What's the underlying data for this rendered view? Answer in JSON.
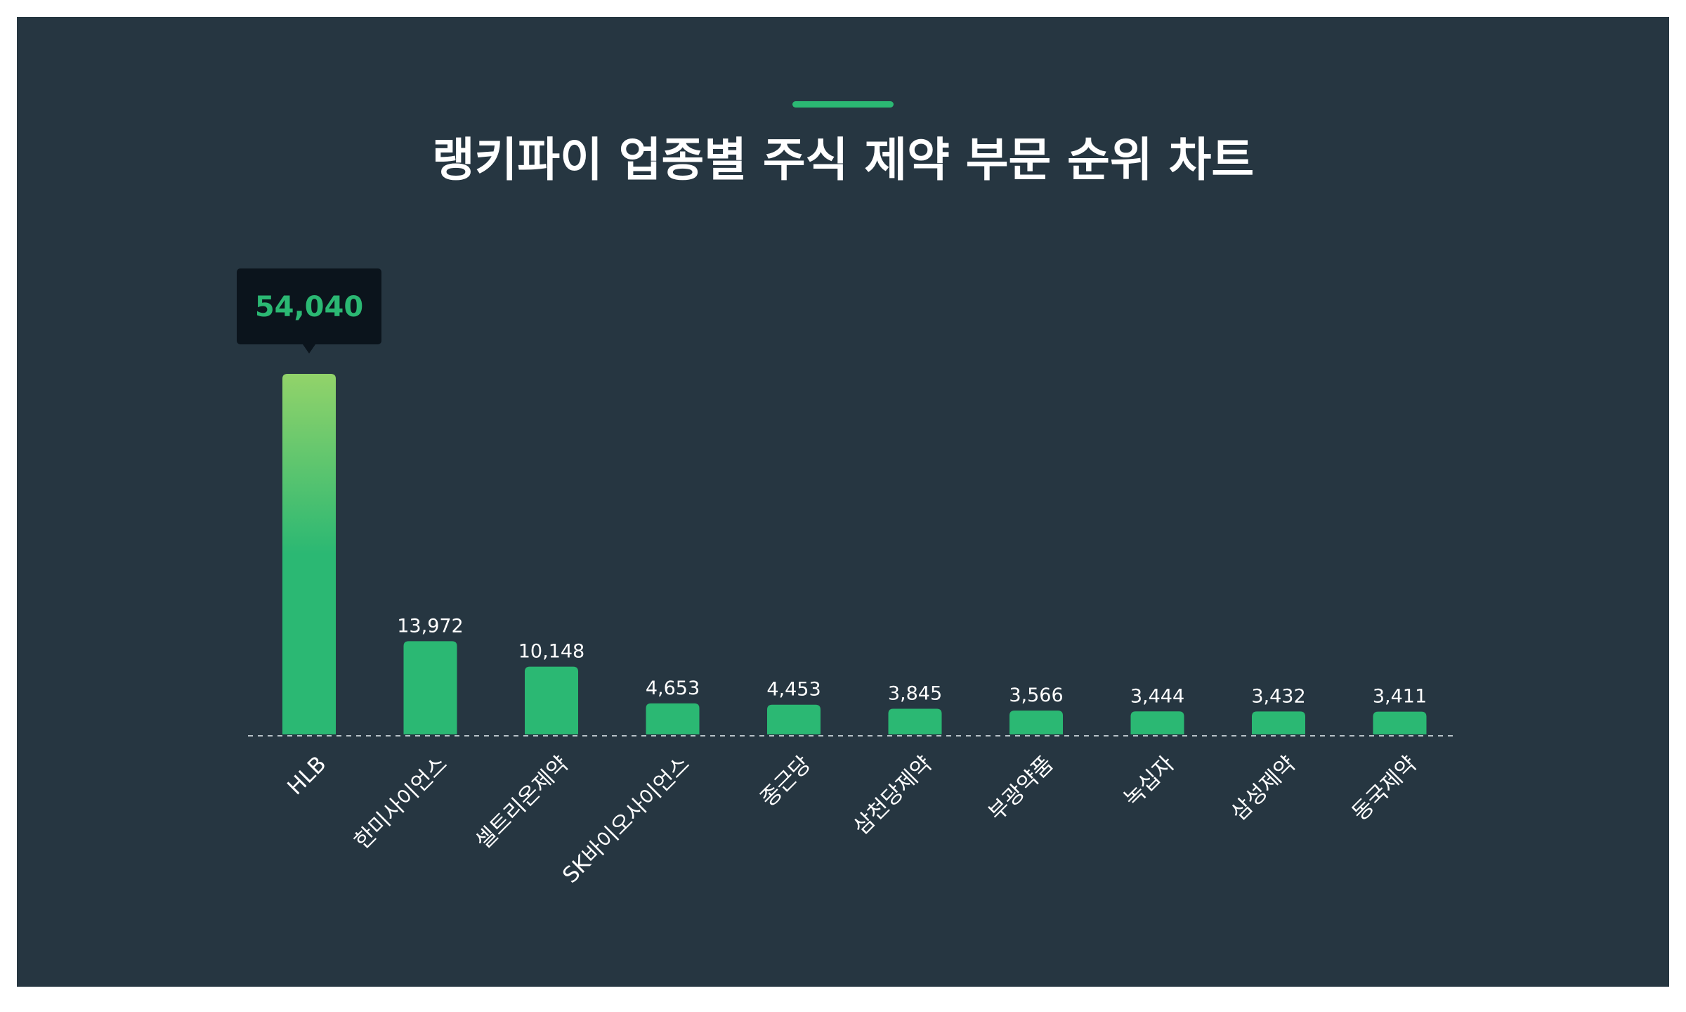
{
  "page": {
    "title": "랭키파이 업종별 주식 제약 부문 순위 차트"
  },
  "colors": {
    "background": "#263641",
    "outer_background": "#ffffff",
    "bar": "#2bb873",
    "bar_highlight_top": "#92d36a",
    "accent": "#2bb873",
    "tooltip_background": "#0b141c",
    "tooltip_text": "#2bb873",
    "label_text": "#ffffff",
    "baseline": "#b8c2c8"
  },
  "chart_data": {
    "type": "bar",
    "title": "랭키파이 업종별 주식 제약 부문 순위 차트",
    "xlabel": "",
    "ylabel": "",
    "categories": [
      "HLB",
      "한미사이언스",
      "셀트리온제약",
      "SK바이오사이언스",
      "종근당",
      "삼천당제약",
      "부광약품",
      "녹십자",
      "삼성제약",
      "동국제약"
    ],
    "values": [
      54040,
      13972,
      10148,
      4653,
      4453,
      3845,
      3566,
      3444,
      3432,
      3411
    ],
    "value_labels": [
      "54,040",
      "13,972",
      "10,148",
      "4,653",
      "4,453",
      "3,845",
      "3,566",
      "3,444",
      "3,432",
      "3,411"
    ],
    "highlight_index": 0,
    "tooltip_label": "54,040",
    "ylim": [
      0,
      54040
    ],
    "grid": false,
    "legend": "none"
  }
}
